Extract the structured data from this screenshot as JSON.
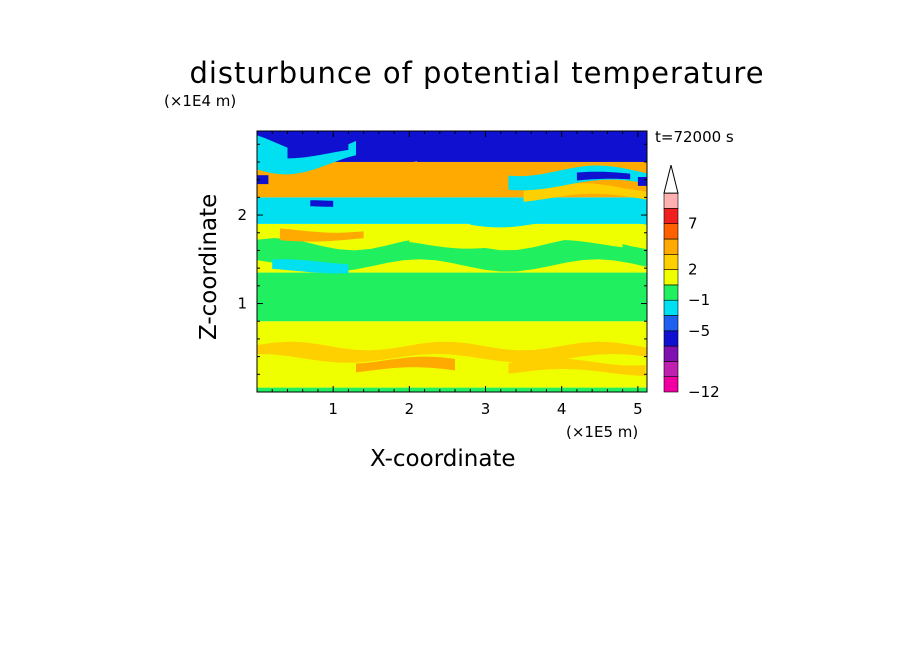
{
  "chart_data": {
    "type": "heatmap",
    "title": "disturbunce of potential temperature",
    "xlabel": "X-coordinate",
    "ylabel": "Z-coordinate",
    "x_unit": "(×1E5 m)",
    "y_unit": "(×1E4 m)",
    "time_label": "t=72000 s",
    "xlim": [
      0,
      5.12
    ],
    "ylim": [
      0,
      2.95
    ],
    "x_ticks": [
      "1",
      "2",
      "3",
      "4",
      "5"
    ],
    "y_ticks": [
      "1",
      "2"
    ],
    "x_tick_values": [
      1,
      2,
      3,
      4,
      5
    ],
    "y_tick_values": [
      1,
      2
    ],
    "colorbar": {
      "levels_labels": [
        "7",
        "2",
        "−1",
        "−5",
        "−12"
      ],
      "extend_top": true,
      "colors": [
        "#f000a0",
        "#c020b0",
        "#8010b0",
        "#1010d0",
        "#2060f0",
        "#00e0f0",
        "#20f060",
        "#f0ff00",
        "#ffd000",
        "#ffaa00",
        "#ff6000",
        "#f02020",
        "#ffb0b0"
      ]
    },
    "bands": [
      {
        "z_range": [
          0.0,
          0.05
        ],
        "value_class": "near zero",
        "color": "#20f060"
      },
      {
        "z_range": [
          0.05,
          0.8
        ],
        "value_class": "0 to 2 (with 2-3 patches)",
        "color": "#f0ff00"
      },
      {
        "z_range": [
          0.8,
          1.35
        ],
        "value_class": "-1 to 0",
        "color": "#20f060"
      },
      {
        "z_range": [
          1.35,
          1.9
        ],
        "value_class": "mixed 0 to 2",
        "color": "#f0ff00"
      },
      {
        "z_range": [
          1.9,
          2.2
        ],
        "value_class": "-2 to -1 patches",
        "color": "#00e0f0"
      },
      {
        "z_range": [
          2.2,
          2.6
        ],
        "value_class": "2 to 3",
        "color": "#ffaa00"
      },
      {
        "z_range": [
          2.6,
          2.95
        ],
        "value_class": "-5 to -2 patches",
        "color": "#1010d0"
      }
    ]
  }
}
